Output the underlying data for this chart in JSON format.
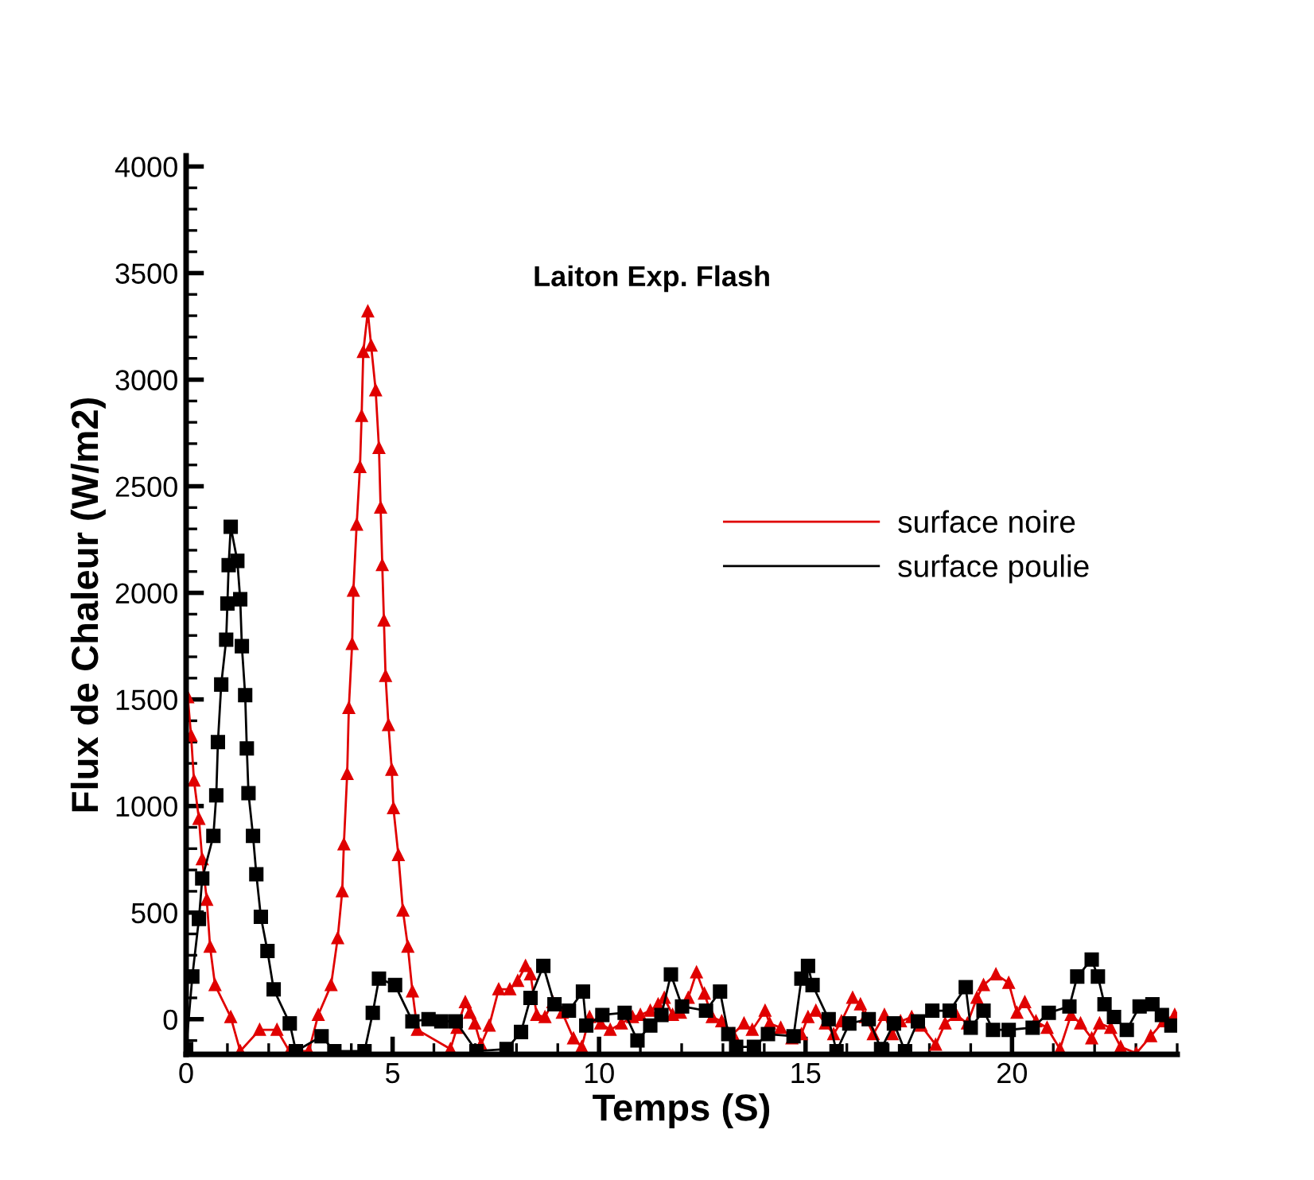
{
  "chart_data": {
    "type": "line",
    "title": "Laiton Exp. Flash",
    "xlabel": "Temps (S)",
    "ylabel": "Flux de Chaleur (W/m2)",
    "xlim": [
      0,
      24
    ],
    "xticks": [
      0,
      5,
      10,
      15,
      20
    ],
    "ylim": [
      -165,
      4050
    ],
    "yticks": [
      0,
      500,
      1000,
      1500,
      2000,
      2500,
      3000,
      3500,
      4000
    ],
    "grid": false,
    "legend": "right",
    "line_style": "solid",
    "series": [
      {
        "name": "surface noire",
        "color": "#e00000",
        "marker": "triangle",
        "x": [
          0.04,
          0.12,
          0.19,
          0.31,
          0.39,
          0.5,
          0.58,
          0.7,
          1.08,
          1.31,
          1.78,
          2.2,
          2.5,
          2.97,
          3.2,
          3.51,
          3.67,
          3.78,
          3.82,
          3.9,
          3.94,
          4.02,
          4.05,
          4.13,
          4.21,
          4.25,
          4.29,
          4.4,
          4.48,
          4.59,
          4.67,
          4.71,
          4.75,
          4.79,
          4.83,
          4.9,
          4.98,
          5.02,
          5.14,
          5.25,
          5.37,
          5.48,
          5.6,
          6.4,
          6.56,
          6.76,
          6.87,
          6.99,
          7.14,
          7.34,
          7.57,
          7.84,
          8.03,
          8.22,
          8.34,
          8.49,
          8.69,
          8.88,
          9.11,
          9.38,
          9.58,
          9.77,
          10.04,
          10.27,
          10.54,
          10.81,
          11.0,
          11.24,
          11.43,
          11.58,
          11.78,
          11.97,
          12.16,
          12.36,
          12.55,
          12.74,
          12.97,
          13.24,
          13.51,
          13.71,
          14.02,
          14.13,
          14.4,
          14.67,
          14.9,
          15.06,
          15.25,
          15.48,
          15.68,
          15.87,
          16.14,
          16.33,
          16.45,
          16.64,
          16.91,
          17.1,
          17.3,
          17.57,
          17.8,
          18.15,
          18.38,
          18.65,
          18.92,
          19.15,
          19.31,
          19.61,
          19.92,
          20.12,
          20.31,
          20.58,
          20.85,
          21.16,
          21.43,
          21.66,
          21.93,
          22.12,
          22.39,
          22.63,
          23.01,
          23.36,
          23.67,
          23.94
        ],
        "values": [
          1510,
          1330,
          1120,
          940,
          750,
          560,
          340,
          160,
          10,
          -150,
          -50,
          -50,
          -150,
          -150,
          20,
          160,
          380,
          600,
          820,
          1150,
          1460,
          1760,
          2010,
          2320,
          2590,
          2830,
          3130,
          3320,
          3160,
          2950,
          2680,
          2400,
          2130,
          1870,
          1610,
          1380,
          1170,
          990,
          770,
          510,
          340,
          130,
          -50,
          -140,
          -40,
          80,
          30,
          -20,
          -120,
          -30,
          140,
          140,
          180,
          250,
          210,
          20,
          10,
          80,
          30,
          -90,
          -130,
          10,
          -20,
          -50,
          -20,
          10,
          20,
          40,
          70,
          100,
          20,
          30,
          100,
          220,
          120,
          10,
          -10,
          -70,
          -20,
          -50,
          40,
          -20,
          -40,
          -90,
          -70,
          10,
          40,
          -20,
          -70,
          -10,
          100,
          70,
          10,
          -70,
          20,
          -70,
          -10,
          10,
          -30,
          -120,
          -20,
          20,
          -20,
          100,
          160,
          210,
          170,
          30,
          80,
          -10,
          -40,
          -140,
          20,
          -20,
          -90,
          -20,
          -40,
          -130,
          -160,
          -80,
          -10,
          20
        ]
      },
      {
        "name": "surface poulie",
        "color": "#000000",
        "marker": "square",
        "x": [
          0.0,
          0.15,
          0.31,
          0.39,
          0.66,
          0.73,
          0.77,
          0.85,
          0.97,
          1.0,
          1.03,
          1.08,
          1.24,
          1.31,
          1.35,
          1.43,
          1.47,
          1.51,
          1.62,
          1.7,
          1.81,
          1.97,
          2.12,
          2.51,
          2.66,
          3.28,
          3.59,
          4.32,
          4.52,
          4.67,
          5.06,
          5.48,
          5.87,
          6.18,
          6.53,
          7.03,
          7.76,
          8.11,
          8.34,
          8.65,
          8.92,
          9.27,
          9.61,
          9.69,
          10.08,
          10.62,
          10.93,
          11.24,
          11.51,
          11.74,
          12.01,
          12.59,
          12.93,
          13.13,
          13.32,
          13.75,
          14.09,
          14.71,
          14.9,
          15.06,
          15.17,
          15.56,
          15.75,
          16.06,
          16.53,
          16.83,
          17.14,
          17.41,
          17.72,
          18.07,
          18.49,
          18.88,
          19.0,
          19.31,
          19.54,
          19.92,
          20.5,
          20.89,
          21.39,
          21.58,
          21.93,
          22.08,
          22.24,
          22.47,
          22.78,
          23.09,
          23.4,
          23.63,
          23.86
        ],
        "values": [
          -140,
          200,
          470,
          660,
          860,
          1050,
          1300,
          1570,
          1780,
          1950,
          2130,
          2310,
          2150,
          1970,
          1750,
          1520,
          1270,
          1060,
          860,
          680,
          480,
          320,
          140,
          -20,
          -150,
          -80,
          -150,
          -150,
          30,
          190,
          160,
          -10,
          0,
          -10,
          -10,
          -150,
          -140,
          -60,
          100,
          250,
          70,
          40,
          130,
          -30,
          20,
          30,
          -100,
          -30,
          20,
          210,
          60,
          40,
          130,
          -70,
          -130,
          -130,
          -70,
          -80,
          190,
          250,
          160,
          0,
          -150,
          -20,
          0,
          -140,
          -20,
          -150,
          -10,
          40,
          40,
          150,
          -40,
          40,
          -50,
          -50,
          -40,
          30,
          60,
          200,
          280,
          200,
          70,
          10,
          -50,
          60,
          70,
          20,
          -30
        ]
      }
    ]
  }
}
